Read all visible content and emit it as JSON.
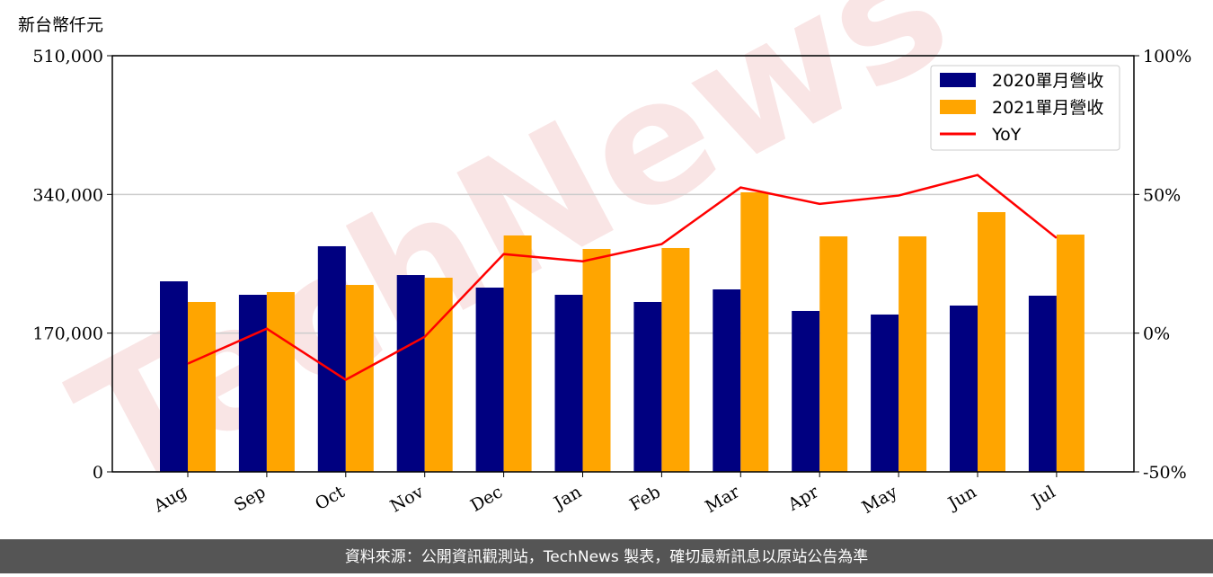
{
  "chart_data": {
    "type": "bar_line",
    "y_axis_label": "新台幣仟元",
    "watermark": "TechNews",
    "source_note": "資料來源：公開資訊觀測站，TechNews 製表，確切最新訊息以原站公告為準",
    "categories": [
      "Aug",
      "Sep",
      "Oct",
      "Nov",
      "Dec",
      "Jan",
      "Feb",
      "Mar",
      "Apr",
      "May",
      "Jun",
      "Jul"
    ],
    "series": [
      {
        "name": "2020單月營收",
        "color": "#000080",
        "kind": "bar",
        "values": [
          233500,
          217000,
          276500,
          241200,
          225800,
          217000,
          208200,
          223600,
          197200,
          192800,
          203800,
          215900
        ]
      },
      {
        "name": "2021單月營收",
        "color": "#ffa500",
        "kind": "bar",
        "values": [
          208200,
          220300,
          229100,
          237900,
          289700,
          273200,
          274300,
          342600,
          288600,
          288600,
          318300,
          290800
        ]
      },
      {
        "name": "YoY",
        "color": "#ff0000",
        "kind": "line",
        "axis": "y2",
        "values": [
          -11.0,
          1.6,
          -16.8,
          -1.3,
          28.5,
          25.9,
          32.1,
          52.5,
          46.6,
          49.6,
          57.0,
          34.3
        ]
      }
    ],
    "ylim": [
      0,
      510000
    ],
    "yticks": [
      0,
      {
        "value": 170000,
        "label": "170,000"
      },
      {
        "value": 340000,
        "label": "340,000"
      },
      {
        "value": 510000,
        "label": "510,000"
      }
    ],
    "y2lim": [
      -50,
      100
    ],
    "y2ticks": [
      {
        "value": -50,
        "label": "-50%"
      },
      {
        "value": 0,
        "label": "0%"
      },
      {
        "value": 50,
        "label": "50%"
      },
      {
        "value": 100,
        "label": "100%"
      }
    ],
    "grid": true,
    "legend": "upper right"
  }
}
